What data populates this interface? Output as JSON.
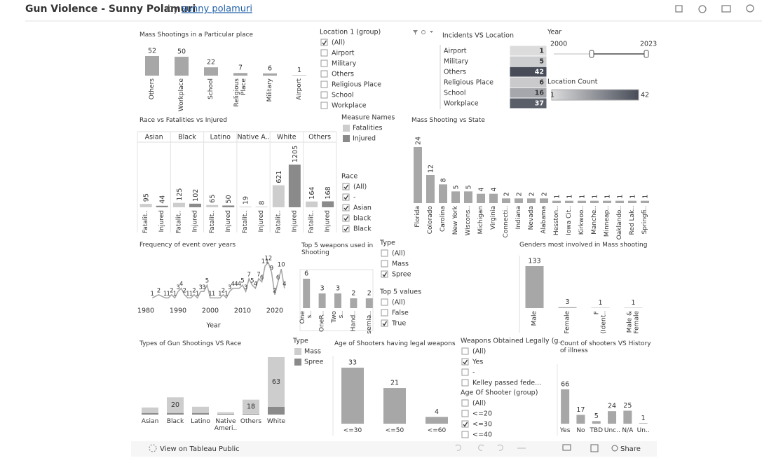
{
  "header": {
    "title": "Gun Violence - Sunny Polamuri",
    "by": "by",
    "author": "sunny polamuri"
  },
  "place_chart": {
    "type": "bar",
    "title": "Mass Shootings in a Particular place",
    "categories": [
      "Others",
      "Workplace",
      "School",
      "Religious Place",
      "Military",
      "Airport"
    ],
    "values": [
      52,
      50,
      22,
      7,
      6,
      1
    ],
    "color": "#a7a7a7"
  },
  "location_filter": {
    "title": "Location 1 (group)",
    "items": [
      "(All)",
      "Airport",
      "Military",
      "Others",
      "Religious Place",
      "School",
      "Workplace"
    ],
    "checked": [
      true,
      false,
      false,
      false,
      false,
      false,
      false
    ]
  },
  "incidents_table": {
    "title": "Incidents VS Location",
    "rows": [
      [
        "Airport",
        1
      ],
      [
        "Military",
        5
      ],
      [
        "Others",
        42
      ],
      [
        "Religious Place",
        6
      ],
      [
        "School",
        16
      ],
      [
        "Workplace",
        37
      ]
    ]
  },
  "year_filter": {
    "title": "Year",
    "range": [
      2000,
      2023
    ]
  },
  "location_count_legend": {
    "title": "Location Count",
    "range": [
      1,
      42
    ],
    "colors": [
      "#dcdcdc",
      "#474c58"
    ]
  },
  "race_chart": {
    "type": "grouped-bar",
    "title": "Race vs Fatalities vs Injured",
    "categories": [
      "Asian",
      "Black",
      "Latino",
      "Native A..",
      "White",
      "Others"
    ],
    "measure_labels": [
      "Fatalit..",
      "Injured"
    ],
    "legend_title": "Measure Names",
    "series": [
      {
        "name": "Fatalities",
        "color": "#cdcdcd",
        "values": [
          95,
          125,
          65,
          19,
          621,
          164
        ]
      },
      {
        "name": "Injured",
        "color": "#8a8a8a",
        "values": [
          44,
          102,
          50,
          8,
          1205,
          168
        ]
      }
    ]
  },
  "race_filter": {
    "title": "Race",
    "items": [
      "(All)",
      "-",
      "Asian",
      "black",
      "Black"
    ],
    "checked": [
      true,
      true,
      true,
      true,
      true
    ]
  },
  "state_chart": {
    "type": "bar",
    "title": "Mass Shooting vs State",
    "categories": [
      "Florida",
      "Colorado",
      "Carolina",
      "New York",
      "Wiscons..",
      "Michigan",
      "Virginia",
      "Connecti..",
      "Indiana",
      "Nevada",
      "Alabama",
      "Hesston..",
      "Iowa Cit..",
      "Kirkwoo..",
      "Manche..",
      "Minneap..",
      "Oaklando..",
      "Red Lak..",
      "Springfi.."
    ],
    "values": [
      24,
      12,
      8,
      5,
      5,
      4,
      4,
      2,
      2,
      2,
      2,
      1,
      1,
      1,
      1,
      1,
      1,
      1,
      1
    ],
    "color": "#a7a7a7"
  },
  "frequency_chart": {
    "type": "line",
    "title": "Frequency of event over years",
    "xlabel": "Year",
    "x": [
      1982,
      1984,
      1986,
      1987,
      1988,
      1989,
      1990,
      1991,
      1992,
      1993,
      1994,
      1995,
      1996,
      1997,
      1998,
      1999,
      2000,
      2001,
      2003,
      2004,
      2005,
      2006,
      2007,
      2008,
      2009,
      2010,
      2011,
      2012,
      2013,
      2014,
      2015,
      2016,
      2017,
      2018,
      2019,
      2020,
      2021,
      2022,
      2023
    ],
    "values": [
      1,
      2,
      1,
      1,
      2,
      1,
      3,
      4,
      2,
      1,
      1,
      2,
      1,
      3,
      3,
      5,
      1,
      1,
      1,
      2,
      1,
      3,
      4,
      4,
      4,
      5,
      3,
      7,
      5,
      4,
      7,
      6,
      11,
      12,
      9,
      2,
      6,
      10,
      4
    ],
    "xlim": [
      1978,
      2024
    ],
    "ylim": [
      0,
      12
    ],
    "xticks": [
      1980,
      1990,
      2000,
      2010,
      2020
    ],
    "color": "#a3a3a3"
  },
  "weapons_chart": {
    "type": "bar",
    "title": "Top 5 weapons used in Shooting",
    "categories": [
      "One s..",
      "OneR..",
      "Two s..",
      "Hand..",
      "semia.."
    ],
    "values": [
      6,
      3,
      3,
      2,
      2
    ],
    "color": "#a7a7a7"
  },
  "type_filter": {
    "title": "Type",
    "items": [
      "(All)",
      "Mass",
      "Spree"
    ],
    "checked": [
      false,
      false,
      true
    ]
  },
  "top5_filter": {
    "title": "Top 5 values",
    "items": [
      "(All)",
      "False",
      "True"
    ],
    "checked": [
      false,
      false,
      true
    ]
  },
  "gender_chart": {
    "type": "bar",
    "title": "Genders most involved in Mass shooting",
    "categories": [
      "Male",
      "Female",
      "F (Ident..",
      "Male & Female"
    ],
    "values": [
      133,
      3,
      1,
      1
    ],
    "color": "#a7a7a7"
  },
  "race_type_chart": {
    "type": "stacked-bar",
    "title": "Types of Gun Shootings VS Race",
    "legend_title": "Type",
    "categories": [
      "Asian",
      "Black",
      "Latino",
      "Native Ameri..",
      "Others",
      "White"
    ],
    "series": [
      {
        "name": "Mass",
        "color": "#cdcdcd",
        "values": [
          7,
          20,
          8,
          2,
          18,
          63
        ],
        "value_labels": [
          null,
          "20",
          null,
          null,
          "18",
          "63"
        ]
      },
      {
        "name": "Spree",
        "color": "#8a8a8a",
        "values": [
          2,
          2,
          2,
          1,
          1,
          10
        ]
      }
    ]
  },
  "age_chart": {
    "type": "bar",
    "title": "Age of Shooters having legal weapons",
    "categories": [
      "<=30",
      "<=50",
      "<=60"
    ],
    "values": [
      33,
      21,
      4
    ],
    "color": "#a7a7a7"
  },
  "weapons_legal_filter": {
    "title": "Weapons Obtained Legally (g...",
    "items": [
      "(All)",
      "Yes",
      "-",
      "Kelley passed fede..."
    ],
    "checked": [
      false,
      true,
      false,
      false
    ]
  },
  "age_filter": {
    "title": "Age Of Shooter (group)",
    "items": [
      "(All)",
      "<=20",
      "<=30",
      "<=40"
    ],
    "checked": [
      false,
      false,
      true,
      false
    ]
  },
  "illness_chart": {
    "type": "bar",
    "title": "Count of shooters VS History of illness",
    "categories": [
      "Yes",
      "No",
      "TBD",
      "Unc..",
      "N/A",
      "Un.."
    ],
    "values": [
      66,
      17,
      5,
      24,
      25,
      1
    ],
    "color": "#a7a7a7"
  },
  "footer": {
    "view": "View on Tableau Public",
    "share": "Share"
  }
}
